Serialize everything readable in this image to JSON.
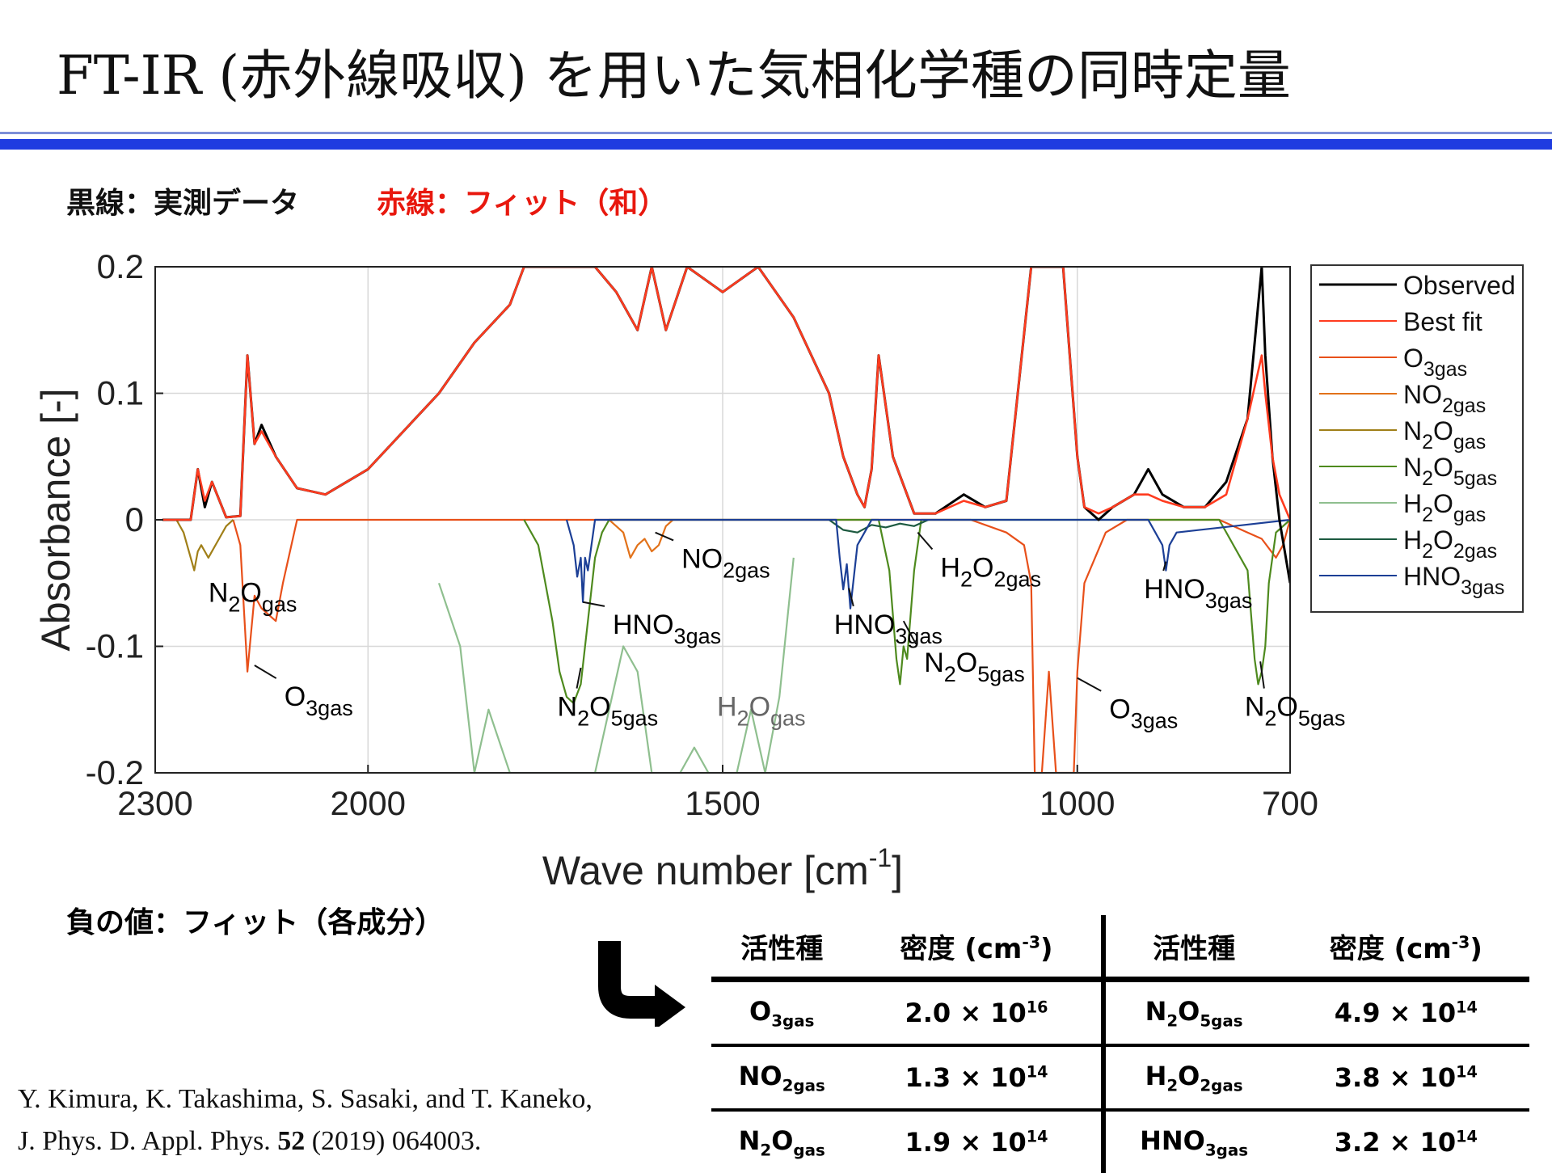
{
  "title": "FT-IR (赤外線吸収) を用いた気相化学種の同時定量",
  "legend_note": {
    "black": "黒線：実測データ",
    "red": "赤線：フィット（和）"
  },
  "negative_note": "負の値：フィット（各成分）",
  "citation": {
    "line1": "Y. Kimura, K. Takashima, S. Sasaki, and T. Kaneko,",
    "line2_prefix": "J. Phys. D. Appl. Phys. ",
    "line2_volume": "52",
    "line2_suffix": " (2019) 064003."
  },
  "chart_data": {
    "type": "line",
    "xlabel": "Wave number [cm",
    "xlabel_sup": "-1",
    "xlabel_close": "]",
    "ylabel": "Absorbance [-]",
    "xlim": [
      2300,
      700
    ],
    "ylim": [
      -0.2,
      0.2
    ],
    "x_reversed": true,
    "x_ticks": [
      "2300",
      "2000",
      "1500",
      "1000",
      "700"
    ],
    "y_ticks": [
      "0.2",
      "0.1",
      "0",
      "-0.1",
      "-0.2"
    ],
    "grid": true,
    "legend_position": "right, outside plot",
    "legend": [
      {
        "label": "Observed",
        "base": "",
        "sub": "",
        "color": "#000000"
      },
      {
        "label": "Best fit",
        "base": "",
        "sub": "",
        "color": "#ff3b1f"
      },
      {
        "label": "",
        "base": "O",
        "sub": "3gas",
        "color": "#e8501a"
      },
      {
        "label": "",
        "base": "NO",
        "sub": "2gas",
        "color": "#e2721a"
      },
      {
        "label": "",
        "base": "N",
        "sub": "2",
        "base2": "O",
        "sub2": "gas",
        "color": "#a07f18"
      },
      {
        "label": "",
        "base": "N",
        "sub": "2",
        "base2": "O",
        "sub2": "5gas",
        "color": "#4e8a1e"
      },
      {
        "label": "",
        "base": "H",
        "sub": "2",
        "base2": "O",
        "sub2": "gas",
        "color": "#8fbf8f"
      },
      {
        "label": "",
        "base": "H",
        "sub": "2",
        "base2": "O",
        "sub2": "2gas",
        "color": "#1d5a40"
      },
      {
        "label": "",
        "base": "HNO",
        "sub": "3gas",
        "color": "#1c3f96"
      }
    ],
    "series": [
      {
        "name": "Observed",
        "color": "#000000",
        "x": [
          2290,
          2250,
          2240,
          2230,
          2220,
          2200,
          2180,
          2170,
          2160,
          2150,
          2130,
          2100,
          2060,
          2000,
          1950,
          1900,
          1850,
          1800,
          1780,
          1760,
          1740,
          1720,
          1700,
          1680,
          1650,
          1620,
          1600,
          1580,
          1550,
          1500,
          1450,
          1400,
          1350,
          1330,
          1310,
          1300,
          1290,
          1280,
          1260,
          1230,
          1200,
          1160,
          1130,
          1100,
          1065,
          1055,
          1040,
          1020,
          1000,
          990,
          970,
          950,
          920,
          900,
          880,
          850,
          820,
          790,
          760,
          740,
          735,
          725,
          715,
          700
        ],
        "y": [
          0.0,
          0.0,
          0.04,
          0.01,
          0.03,
          0.002,
          0.003,
          0.13,
          0.06,
          0.075,
          0.05,
          0.025,
          0.02,
          0.04,
          0.07,
          0.1,
          0.14,
          0.17,
          0.2,
          0.2,
          0.2,
          0.2,
          0.2,
          0.2,
          0.18,
          0.15,
          0.2,
          0.15,
          0.2,
          0.18,
          0.2,
          0.16,
          0.1,
          0.05,
          0.02,
          0.01,
          0.04,
          0.13,
          0.05,
          0.005,
          0.005,
          0.02,
          0.01,
          0.015,
          0.2,
          0.2,
          0.2,
          0.2,
          0.05,
          0.01,
          0.0,
          0.01,
          0.02,
          0.04,
          0.02,
          0.01,
          0.01,
          0.03,
          0.08,
          0.2,
          0.13,
          0.05,
          0.0,
          -0.05
        ]
      },
      {
        "name": "Best fit",
        "color": "#ff3b1f",
        "x": [
          2290,
          2250,
          2240,
          2230,
          2220,
          2200,
          2180,
          2170,
          2160,
          2150,
          2130,
          2100,
          2060,
          2000,
          1950,
          1900,
          1850,
          1800,
          1780,
          1760,
          1740,
          1720,
          1700,
          1680,
          1650,
          1620,
          1600,
          1580,
          1550,
          1500,
          1450,
          1400,
          1350,
          1330,
          1310,
          1300,
          1290,
          1280,
          1260,
          1230,
          1200,
          1160,
          1130,
          1100,
          1065,
          1055,
          1040,
          1020,
          1000,
          990,
          970,
          950,
          920,
          900,
          880,
          850,
          820,
          790,
          760,
          740,
          735,
          725,
          715,
          700
        ],
        "y": [
          0.0,
          0.0,
          0.04,
          0.015,
          0.03,
          0.002,
          0.003,
          0.13,
          0.06,
          0.07,
          0.05,
          0.025,
          0.02,
          0.04,
          0.07,
          0.1,
          0.14,
          0.17,
          0.2,
          0.2,
          0.2,
          0.2,
          0.2,
          0.2,
          0.18,
          0.15,
          0.2,
          0.15,
          0.2,
          0.18,
          0.2,
          0.16,
          0.1,
          0.05,
          0.02,
          0.01,
          0.04,
          0.13,
          0.05,
          0.005,
          0.005,
          0.015,
          0.01,
          0.015,
          0.2,
          0.2,
          0.2,
          0.2,
          0.05,
          0.01,
          0.005,
          0.01,
          0.02,
          0.02,
          0.015,
          0.01,
          0.01,
          0.02,
          0.08,
          0.13,
          0.1,
          0.05,
          0.02,
          0.0
        ]
      },
      {
        "name": "O3gas",
        "color": "#e8501a",
        "x": [
          2190,
          2180,
          2170,
          2160,
          2150,
          2130,
          2120,
          2100,
          1150,
          1100,
          1075,
          1065,
          1060,
          1050,
          1040,
          1030,
          1020,
          1005,
          1000,
          990,
          960,
          930,
          900,
          800,
          760,
          740,
          720,
          710,
          700
        ],
        "y": [
          0.0,
          -0.02,
          -0.12,
          -0.06,
          -0.07,
          -0.08,
          -0.05,
          0.0,
          0.0,
          -0.01,
          -0.02,
          -0.05,
          -0.2,
          -0.2,
          -0.12,
          -0.2,
          -0.2,
          -0.2,
          -0.12,
          -0.05,
          -0.01,
          0.0,
          0.0,
          0.0,
          -0.01,
          -0.015,
          -0.03,
          -0.02,
          0.0
        ]
      },
      {
        "name": "NO2gas",
        "color": "#e2721a",
        "x": [
          1660,
          1640,
          1630,
          1620,
          1610,
          1600,
          1590,
          1580,
          1570
        ],
        "y": [
          0.0,
          -0.01,
          -0.03,
          -0.02,
          -0.015,
          -0.025,
          -0.02,
          -0.005,
          0.0
        ]
      },
      {
        "name": "N2Ogas",
        "color": "#a07f18",
        "x": [
          2270,
          2260,
          2250,
          2245,
          2240,
          2235,
          2225,
          2220,
          2210,
          2200,
          2190
        ],
        "y": [
          0.0,
          -0.01,
          -0.03,
          -0.04,
          -0.025,
          -0.02,
          -0.03,
          -0.025,
          -0.015,
          -0.005,
          0.0
        ]
      },
      {
        "name": "N2O5gas",
        "color": "#4e8a1e",
        "x": [
          1780,
          1760,
          1740,
          1730,
          1720,
          1710,
          1700,
          1690,
          1680,
          1670,
          1660,
          1280,
          1265,
          1255,
          1250,
          1245,
          1240,
          1230,
          1220,
          800,
          760,
          750,
          745,
          740,
          735,
          730,
          720,
          700
        ],
        "y": [
          0.0,
          -0.02,
          -0.08,
          -0.12,
          -0.14,
          -0.145,
          -0.13,
          -0.08,
          -0.03,
          -0.01,
          0.0,
          0.0,
          -0.04,
          -0.11,
          -0.13,
          -0.1,
          -0.11,
          -0.04,
          0.0,
          0.0,
          -0.04,
          -0.11,
          -0.13,
          -0.12,
          -0.1,
          -0.05,
          -0.01,
          0.0
        ]
      },
      {
        "name": "H2Ogas",
        "color": "#8fbf8f",
        "x": [
          1900,
          1870,
          1850,
          1830,
          1800,
          1780,
          1760,
          1740,
          1720,
          1700,
          1680,
          1660,
          1640,
          1620,
          1600,
          1580,
          1560,
          1540,
          1520,
          1500,
          1480,
          1460,
          1440,
          1420,
          1400
        ],
        "y": [
          -0.05,
          -0.1,
          -0.2,
          -0.15,
          -0.2,
          -0.2,
          -0.2,
          -0.2,
          -0.2,
          -0.2,
          -0.2,
          -0.15,
          -0.1,
          -0.12,
          -0.2,
          -0.2,
          -0.2,
          -0.18,
          -0.2,
          -0.2,
          -0.2,
          -0.15,
          -0.2,
          -0.14,
          -0.03
        ]
      },
      {
        "name": "H2O2gas",
        "color": "#1d5a40",
        "x": [
          1350,
          1330,
          1310,
          1290,
          1270,
          1250,
          1230,
          1210
        ],
        "y": [
          0.0,
          -0.008,
          -0.01,
          -0.004,
          -0.006,
          -0.003,
          -0.005,
          0.0
        ]
      },
      {
        "name": "HNO3gas",
        "color": "#1c3f96",
        "x": [
          1720,
          1710,
          1705,
          1700,
          1697,
          1694,
          1690,
          1685,
          1680,
          1340,
          1335,
          1330,
          1325,
          1320,
          1310,
          1300,
          1290,
          900,
          890,
          880,
          875,
          870,
          860,
          700
        ],
        "y": [
          0.0,
          -0.02,
          -0.045,
          -0.03,
          -0.065,
          -0.03,
          -0.04,
          -0.02,
          0.0,
          0.0,
          -0.03,
          -0.055,
          -0.035,
          -0.07,
          -0.02,
          -0.01,
          0.0,
          0.0,
          -0.01,
          -0.02,
          -0.04,
          -0.02,
          -0.01,
          0.0
        ]
      }
    ],
    "annotations": [
      {
        "base": "N",
        "sub": "2",
        "base2": "O",
        "sub2": "gas",
        "x": 2225,
        "y": -0.065,
        "color": "#000000",
        "leader": false
      },
      {
        "base": "O",
        "sub": "3gas",
        "x": 2118,
        "y": -0.147,
        "color": "#000000",
        "leader": true,
        "lx2": 2160,
        "ly2": -0.115
      },
      {
        "base": "N",
        "sub": "2",
        "base2": "O",
        "sub2": "5gas",
        "x": 1733,
        "y": -0.155,
        "color": "#000000",
        "leader": true,
        "lx2": 1700,
        "ly2": -0.117
      },
      {
        "base": "HNO",
        "sub": "3gas",
        "x": 1655,
        "y": -0.09,
        "color": "#000000",
        "leader": true,
        "lx2": 1697,
        "ly2": -0.065
      },
      {
        "base": "NO",
        "sub": "2gas",
        "x": 1558,
        "y": -0.038,
        "color": "#000000",
        "leader": true,
        "lx2": 1595,
        "ly2": -0.01
      },
      {
        "base": "H",
        "sub": "2",
        "base2": "O",
        "sub2": "gas",
        "x": 1508,
        "y": -0.155,
        "color": "#666666",
        "leader": false
      },
      {
        "base": "HNO",
        "sub": "3gas",
        "x": 1343,
        "y": -0.09,
        "color": "#000000",
        "leader": true,
        "lx2": 1322,
        "ly2": -0.054
      },
      {
        "base": "N",
        "sub": "2",
        "base2": "O",
        "sub2": "5gas",
        "x": 1216,
        "y": -0.12,
        "color": "#000000",
        "leader": true,
        "lx2": 1245,
        "ly2": -0.08
      },
      {
        "base": "H",
        "sub": "2",
        "base2": "O",
        "sub2": "2gas",
        "x": 1193,
        "y": -0.045,
        "color": "#000000",
        "leader": true,
        "lx2": 1225,
        "ly2": -0.01
      },
      {
        "base": "O",
        "sub": "3gas",
        "x": 955,
        "y": -0.157,
        "color": "#000000",
        "leader": true,
        "lx2": 1000,
        "ly2": -0.125
      },
      {
        "base": "HNO",
        "sub": "3gas",
        "x": 906,
        "y": -0.062,
        "color": "#000000",
        "leader": true,
        "lx2": 875,
        "ly2": -0.033
      },
      {
        "base": "N",
        "sub": "2",
        "base2": "O",
        "sub2": "5gas",
        "x": 764,
        "y": -0.155,
        "color": "#000000",
        "leader": true,
        "lx2": 742,
        "ly2": -0.112
      }
    ]
  },
  "table": {
    "headers": [
      "活性種",
      "密度 (cm",
      "活性種",
      "密度 (cm"
    ],
    "header_sup": "-3",
    "header_close": ")",
    "rows": [
      {
        "s1": {
          "base": "O",
          "sub": "3gas"
        },
        "d1": {
          "mant": "2.0 × 10",
          "exp": "16"
        },
        "s2": {
          "base": "N",
          "sub": "2",
          "base2": "O",
          "sub2": "5gas"
        },
        "d2": {
          "mant": "4.9 × 10",
          "exp": "14"
        }
      },
      {
        "s1": {
          "base": "NO",
          "sub": "2gas"
        },
        "d1": {
          "mant": "1.3 × 10",
          "exp": "14"
        },
        "s2": {
          "base": "H",
          "sub": "2",
          "base2": "O",
          "sub2": "2gas"
        },
        "d2": {
          "mant": "3.8 × 10",
          "exp": "14"
        }
      },
      {
        "s1": {
          "base": "N",
          "sub": "2",
          "base2": "O",
          "sub2": "gas"
        },
        "d1": {
          "mant": "1.9 × 10",
          "exp": "14"
        },
        "s2": {
          "base": "HNO",
          "sub": "3gas"
        },
        "d2": {
          "mant": "3.2 × 10",
          "exp": "14"
        }
      }
    ]
  }
}
